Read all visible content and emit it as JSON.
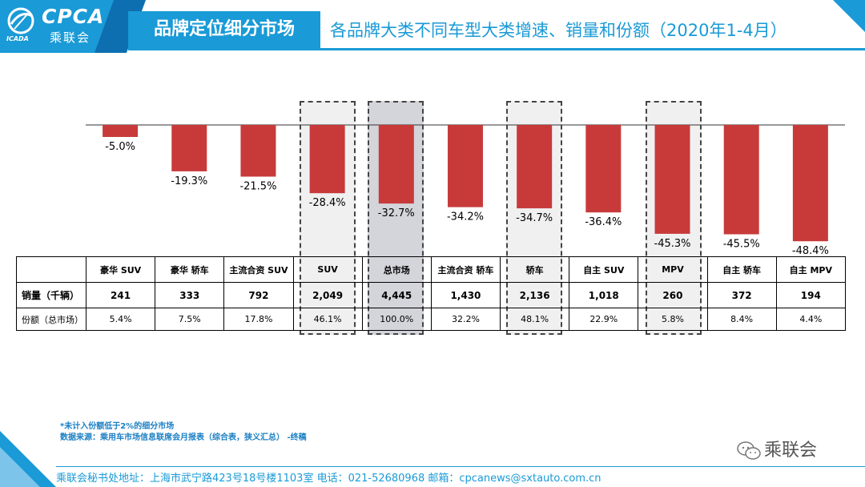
{
  "header": {
    "logo_en": "CPCA",
    "logo_cn": "乘联会",
    "logo_abbr": "ICADA",
    "title": "品牌定位细分市场",
    "subtitle": "各品牌大类不同车型大类增速、销量和份额（2020年1-4月）"
  },
  "colors": {
    "accent": "#1a9ad6",
    "bar": "#c83a3a"
  },
  "chart_data": {
    "type": "bar",
    "categories": [
      "豪华 SUV",
      "豪华 轿车",
      "主流合资 SUV",
      "SUV",
      "总市场",
      "主流合资 轿车",
      "轿车",
      "自主 SUV",
      "MPV",
      "自主 轿车",
      "自主 MPV"
    ],
    "values": [
      -5.0,
      -19.3,
      -21.5,
      -28.4,
      -32.7,
      -34.2,
      -34.7,
      -36.4,
      -45.3,
      -45.5,
      -48.4
    ],
    "data_labels": [
      "-5.0%",
      "-19.3%",
      "-21.5%",
      "-28.4%",
      "-32.7%",
      "-34.2%",
      "-34.7%",
      "-36.4%",
      "-45.3%",
      "-45.5%",
      "-48.4%"
    ],
    "ylim": [
      -50,
      0
    ],
    "title": "",
    "xlabel": "",
    "ylabel": "",
    "highlighted": [
      "SUV",
      "总市场",
      "轿车",
      "MPV"
    ]
  },
  "table": {
    "row_headers": [
      "销量（千辆）",
      "份额（总市场）"
    ],
    "sales": [
      "241",
      "333",
      "792",
      "2,049",
      "4,445",
      "1,430",
      "2,136",
      "1,018",
      "260",
      "372",
      "194"
    ],
    "share": [
      "5.4%",
      "7.5%",
      "17.8%",
      "46.1%",
      "100.0%",
      "32.2%",
      "48.1%",
      "22.9%",
      "5.8%",
      "8.4%",
      "4.4%"
    ]
  },
  "footer": {
    "note1": "*未计入份额低于2%的细分市场",
    "note2": "数据来源：乘用车市场信息联席会月报表（综合表，狭义汇总）   -终稿",
    "wechat": "乘联会",
    "address": "乘联会秘书处地址：上海市武宁路423号18号楼1103室  电话：021-52680968  邮箱：cpcanews@sxtauto.com.cn"
  }
}
